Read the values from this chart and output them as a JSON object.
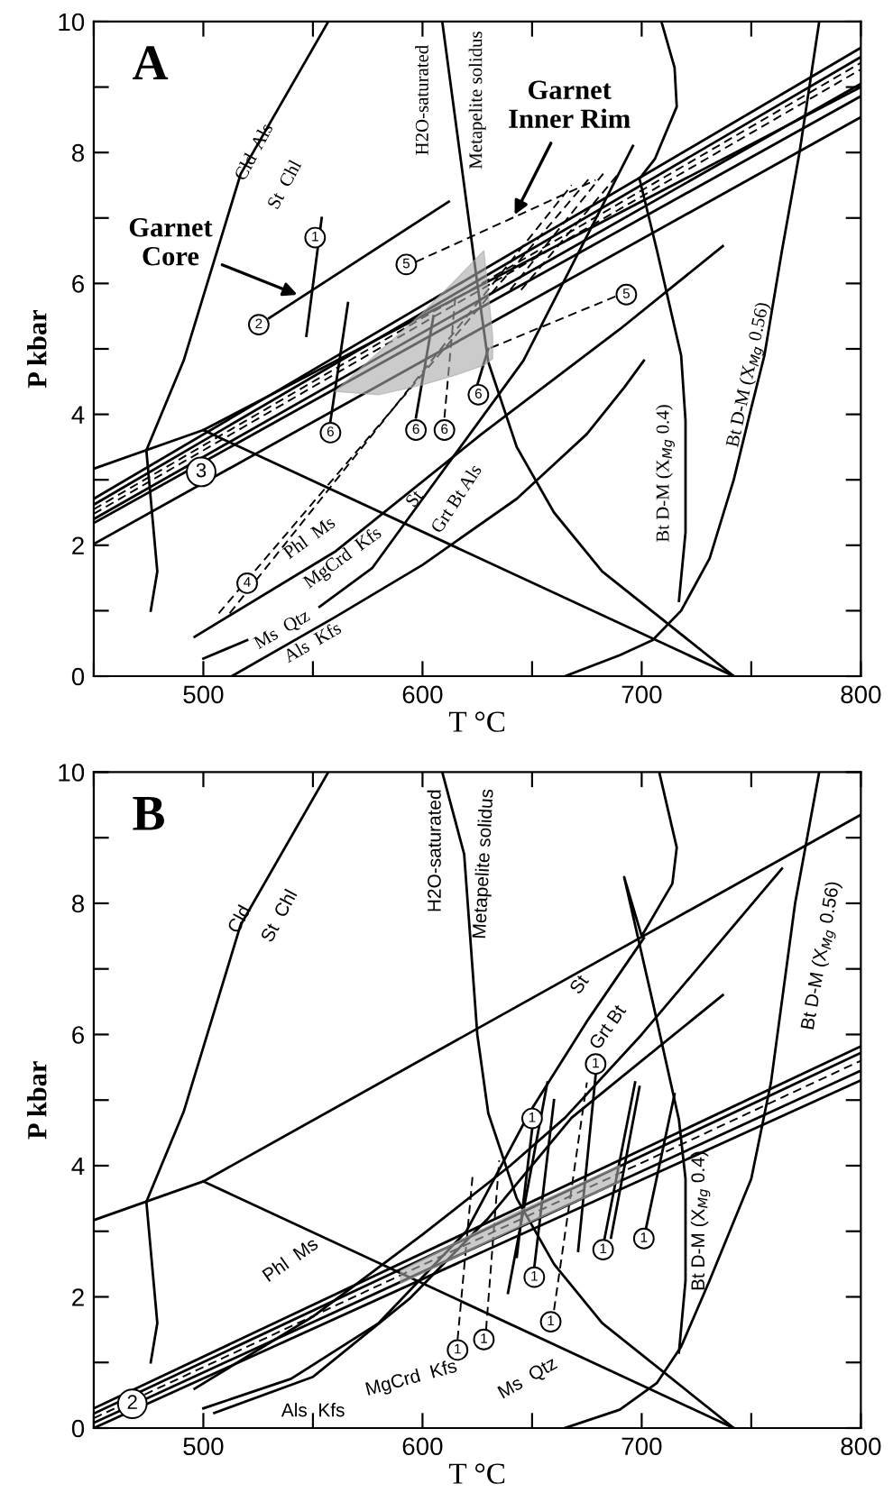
{
  "chart_data": [
    {
      "type": "line",
      "title": "A",
      "xlabel": "T °C",
      "ylabel": "P kbar",
      "xlim": [
        450,
        800
      ],
      "ylim": [
        0,
        10
      ],
      "xticks": [
        {
          "value": 450,
          "label": null
        },
        500,
        {
          "value": 550,
          "label": null
        },
        600,
        {
          "value": 650,
          "label": null
        },
        700,
        {
          "value": 750,
          "label": null
        },
        800
      ],
      "yticks": [
        0,
        {
          "value": 1,
          "label": null
        },
        2,
        {
          "value": 3,
          "label": null
        },
        4,
        {
          "value": 5,
          "label": null
        },
        6,
        {
          "value": 7,
          "label": null
        },
        8,
        {
          "value": 9,
          "label": null
        },
        10
      ],
      "series": [
        {
          "color": "#000000",
          "x": [
            476,
            479,
            474,
            491,
            517,
            557
          ],
          "values": [
            1.0,
            1.6,
            3.45,
            4.82,
            7.67,
            10
          ]
        },
        {
          "color": "#000000",
          "x": [
            450,
            500,
            800
          ],
          "values": [
            3.17,
            3.76,
            9.0
          ]
        },
        {
          "color": "#000000",
          "x": [
            500,
            742
          ],
          "values": [
            3.76,
            0
          ]
        },
        {
          "color": "#000000",
          "x": [
            609,
            617,
            625,
            630,
            643,
            660,
            682,
            742
          ],
          "values": [
            10,
            8,
            6,
            4.8,
            3.5,
            2.5,
            1.6,
            0
          ]
        },
        {
          "color": "#000000",
          "x": [
            709,
            715,
            716,
            706,
            699,
            707,
            718,
            720,
            720,
            717
          ],
          "values": [
            10,
            9.3,
            8.7,
            7.9,
            7.6,
            6.5,
            4.9,
            3.9,
            2.2,
            1.15
          ]
        },
        {
          "color": "#000000",
          "x": [
            781,
            772,
            764,
            756,
            750,
            742,
            731,
            718,
            705,
            690,
            665
          ],
          "values": [
            10,
            8,
            6.5,
            4.9,
            4.1,
            3.0,
            1.8,
            1.0,
            0.55,
            0.32,
            0
          ]
        },
        {
          "color": "#000000",
          "x": [
            496,
            560,
            627,
            690,
            737
          ],
          "values": [
            0.6,
            1.9,
            3.7,
            5.3,
            6.57
          ]
        },
        {
          "color": "#000000",
          "x": [
            500,
            520
          ],
          "values": [
            0.27,
            0.55
          ]
        },
        {
          "color": "#000000",
          "x": [
            553,
            577,
            602,
            646,
            696
          ],
          "values": [
            1.06,
            1.65,
            2.8,
            4.82,
            8.1
          ]
        },
        {
          "color": "#000000",
          "x": [
            513,
            560,
            600,
            643,
            675,
            692,
            701
          ],
          "values": [
            0,
            0.9,
            1.7,
            2.71,
            3.7,
            4.41,
            4.82
          ]
        },
        {
          "color": "#000000",
          "x": [
            450,
            800
          ],
          "values": [
            2.71,
            9.6
          ]
        },
        {
          "color": "#000000",
          "x": [
            450,
            800
          ],
          "values": [
            2.62,
            9.46
          ]
        },
        {
          "color": "#000000",
          "line_style": "dashed",
          "x": [
            450,
            800
          ],
          "values": [
            2.55,
            9.37
          ]
        },
        {
          "color": "#000000",
          "line_style": "dashed",
          "x": [
            450,
            800
          ],
          "values": [
            2.48,
            9.27
          ]
        },
        {
          "color": "#000000",
          "x": [
            450,
            800
          ],
          "values": [
            2.4,
            9.05
          ]
        },
        {
          "color": "#000000",
          "x": [
            450,
            800
          ],
          "values": [
            2.34,
            8.86
          ]
        },
        {
          "color": "#000000",
          "x": [
            450,
            800
          ],
          "values": [
            2.02,
            8.54
          ]
        },
        {
          "color": "#000000",
          "x": [
            530,
            612
          ],
          "values": [
            5.47,
            7.25
          ]
        },
        {
          "color": "#000000",
          "x": [
            554,
            547
          ],
          "values": [
            7.0,
            5.2
          ]
        },
        {
          "color": "#000000",
          "x": [
            558,
            566
          ],
          "values": [
            3.9,
            5.7
          ]
        },
        {
          "color": "#000000",
          "x": [
            597,
            605
          ],
          "values": [
            3.95,
            5.5
          ]
        },
        {
          "color": "#000000",
          "line_style": "dashed",
          "x": [
            610,
            615
          ],
          "values": [
            3.95,
            5.8
          ]
        },
        {
          "color": "#000000",
          "x": [
            625,
            630
          ],
          "values": [
            4.45,
            5.0
          ]
        },
        {
          "color": "#000000",
          "line_style": "dashed",
          "x": [
            597,
            679
          ],
          "values": [
            6.33,
            7.58
          ]
        },
        {
          "color": "#000000",
          "line_style": "dashed",
          "x": [
            688,
            630
          ],
          "values": [
            5.8,
            5.0
          ]
        },
        {
          "color": "#000000",
          "line_style": "dashed",
          "x": [
            507,
            676
          ],
          "values": [
            0.96,
            7.6
          ]
        },
        {
          "color": "#000000",
          "line_style": "dashed",
          "x": [
            512,
            668
          ],
          "values": [
            0.96,
            7.5
          ]
        },
        {
          "color": "#000000",
          "line_style": "dashed",
          "x": [
            640,
            683
          ],
          "values": [
            5.9,
            7.7
          ]
        },
        {
          "color": "#000000",
          "line_style": "dashed",
          "x": [
            645,
            690
          ],
          "values": [
            5.9,
            7.7
          ]
        },
        {
          "type": "area",
          "color": "#a8a8a8",
          "x": [
            560,
            580,
            600,
            615,
            628,
            632
          ],
          "values": [
            null,
            null,
            null,
            null,
            null,
            null
          ],
          "upper": [
            4.35,
            4.95,
            5.55,
            6.05,
            6.5,
            5.2
          ],
          "lower": [
            4.35,
            4.3,
            4.45,
            4.6,
            4.75,
            4.85
          ]
        }
      ],
      "annotations": [
        "Cld  Als",
        "St  Chl",
        "H2O-saturated",
        "Metapelite solidus",
        {
          "text": "Garnet\nCore",
          "x": 545,
          "y": 5.8
        },
        {
          "text": "Garnet\nInner Rim",
          "x": 641,
          "y": 6.98
        },
        "Bt D-M (X$_{Mg}$ 0.4)",
        "Bt D-M (X$_{Mg}$ 0.56)",
        "Phl  Ms",
        "MgCrd  Kfs",
        "Ms  Qtz",
        "Als  Kfs",
        "St",
        "Grt Bt Als",
        {
          "text": "3",
          "x": 499,
          "y": 3.12
        },
        {
          "text": "1",
          "x": 551,
          "y": 6.7
        },
        {
          "text": "2",
          "x": 525.3,
          "y": 5.37
        },
        {
          "text": "5",
          "x": 592.6,
          "y": 6.29
        },
        {
          "text": "5",
          "x": 693,
          "y": 5.83
        },
        {
          "text": "6",
          "x": 558,
          "y": 3.72
        },
        {
          "text": "6",
          "x": 597,
          "y": 3.76
        },
        {
          "text": "6",
          "x": 610,
          "y": 3.76
        },
        {
          "text": "6",
          "x": 625.5,
          "y": 4.3
        },
        {
          "text": "4",
          "x": 520,
          "y": 1.42
        }
      ]
    },
    {
      "type": "line",
      "title": "B",
      "xlabel": "T °C",
      "ylabel": "P kbar",
      "xlim": [
        450,
        800
      ],
      "ylim": [
        0,
        10
      ],
      "xticks": [
        {
          "value": 450,
          "label": null
        },
        500,
        {
          "value": 550,
          "label": null
        },
        600,
        {
          "value": 650,
          "label": null
        },
        700,
        {
          "value": 750,
          "label": null
        },
        800
      ],
      "yticks": [
        0,
        {
          "value": 1,
          "label": null
        },
        2,
        {
          "value": 3,
          "label": null
        },
        4,
        {
          "value": 5,
          "label": null
        },
        6,
        {
          "value": 7,
          "label": null
        },
        8,
        {
          "value": 9,
          "label": null
        },
        10
      ],
      "series": [
        {
          "color": "#000000",
          "x": [
            476,
            479,
            474,
            491,
            517,
            557
          ],
          "values": [
            1.0,
            1.6,
            3.45,
            4.82,
            7.67,
            10
          ]
        },
        {
          "color": "#000000",
          "x": [
            450,
            500,
            800
          ],
          "values": [
            3.17,
            3.76,
            9.35
          ]
        },
        {
          "color": "#000000",
          "x": [
            500,
            742
          ],
          "values": [
            3.76,
            0
          ]
        },
        {
          "color": "#000000",
          "x": [
            609,
            619,
            625,
            630,
            643,
            660,
            682,
            742
          ],
          "values": [
            10,
            8.75,
            6,
            4.8,
            3.5,
            2.5,
            1.6,
            0
          ]
        },
        {
          "color": "#000000",
          "x": [
            708,
            716,
            714,
            700,
            692,
            705,
            717,
            720,
            720,
            717
          ],
          "values": [
            10,
            8.85,
            8.3,
            7.5,
            8.4,
            6.5,
            4.7,
            3.8,
            2.25,
            1.15
          ]
        },
        {
          "color": "#000000",
          "x": [
            781,
            770,
            759,
            750,
            731,
            718,
            707,
            690,
            665
          ],
          "values": [
            10,
            8,
            5.27,
            3.8,
            2.25,
            1.24,
            0.69,
            0.28,
            0
          ]
        },
        {
          "color": "#000000",
          "x": [
            496,
            550,
            600,
            640,
            665,
            700,
            764
          ],
          "values": [
            0.6,
            1.7,
            2.95,
            4.0,
            4.73,
            6.0,
            8.53
          ]
        },
        {
          "color": "#000000",
          "x": [
            500,
            540,
            580,
            620,
            649,
            675,
            701
          ],
          "values": [
            0.3,
            0.75,
            1.6,
            3.0,
            4.82,
            6.2,
            7.47
          ]
        },
        {
          "color": "#000000",
          "x": [
            505,
            550,
            594,
            630,
            668,
            700,
            737
          ],
          "values": [
            0.23,
            0.78,
            1.97,
            3.2,
            4.73,
            5.6,
            6.6
          ]
        },
        {
          "color": "#000000",
          "x": [
            450,
            800
          ],
          "values": [
            0.3,
            5.82
          ]
        },
        {
          "color": "#000000",
          "x": [
            450,
            800
          ],
          "values": [
            0.22,
            5.72
          ]
        },
        {
          "color": "#000000",
          "line_style": "dashed",
          "x": [
            450,
            800
          ],
          "values": [
            0.15,
            5.6
          ]
        },
        {
          "color": "#000000",
          "x": [
            450,
            800
          ],
          "values": [
            0.08,
            5.45
          ]
        },
        {
          "color": "#000000",
          "x": [
            450,
            800
          ],
          "values": [
            0.0,
            5.3
          ]
        },
        {
          "color": "#000000",
          "line_style": "dashed",
          "x": [
            616,
            623
          ],
          "values": [
            1.35,
            3.9
          ]
        },
        {
          "color": "#000000",
          "line_style": "dashed",
          "x": [
            629,
            635
          ],
          "values": [
            1.5,
            4.08
          ]
        },
        {
          "color": "#000000",
          "line_style": "dashed",
          "x": [
            660,
            675
          ],
          "values": [
            1.8,
            5.27
          ]
        },
        {
          "color": "#000000",
          "x": [
            651,
            660
          ],
          "values": [
            2.45,
            5.0
          ]
        },
        {
          "color": "#000000",
          "x": [
            639,
            657
          ],
          "values": [
            2.06,
            5.27
          ]
        },
        {
          "color": "#000000",
          "x": [
            650,
            643
          ],
          "values": [
            4.55,
            2.61
          ]
        },
        {
          "color": "#000000",
          "x": [
            679,
            671
          ],
          "values": [
            5.38,
            2.7
          ]
        },
        {
          "color": "#000000",
          "x": [
            683,
            697
          ],
          "values": [
            2.88,
            5.27
          ]
        },
        {
          "color": "#000000",
          "x": [
            686,
            699
          ],
          "values": [
            2.9,
            5.2
          ]
        },
        {
          "color": "#000000",
          "x": [
            702,
            715
          ],
          "values": [
            3.05,
            5.09
          ]
        },
        {
          "type": "area",
          "color": "#a8a8a8",
          "x": [
            590,
            640,
            690
          ],
          "values": [
            null,
            null,
            null
          ],
          "upper": [
            2.4,
            3.25,
            4.0
          ],
          "lower": [
            2.2,
            3.0,
            3.75
          ]
        }
      ],
      "annotations": [
        "Cld",
        "St  Chl",
        "H2O-saturated",
        "Metapelite solidus",
        "St",
        "Grt Bt",
        "Bt D-M (X$_{Mg}$ 0.4)",
        "Bt D-M (X$_{Mg}$ 0.56)",
        "Phl  Ms",
        "MgCrd  Kfs",
        "Ms  Qtz",
        "Als  Kfs",
        {
          "text": "2",
          "x": 467.6,
          "y": 0.37
        },
        {
          "text": "1",
          "x": 616,
          "y": 1.19
        },
        {
          "text": "1",
          "x": 628,
          "y": 1.35
        },
        {
          "text": "1",
          "x": 658.5,
          "y": 1.62
        },
        {
          "text": "1",
          "x": 651,
          "y": 2.3
        },
        {
          "text": "1",
          "x": 650,
          "y": 4.72
        },
        {
          "text": "1",
          "x": 679,
          "y": 5.55
        },
        {
          "text": "1",
          "x": 682.4,
          "y": 2.72
        },
        {
          "text": "1",
          "x": 701,
          "y": 2.89
        }
      ]
    }
  ]
}
